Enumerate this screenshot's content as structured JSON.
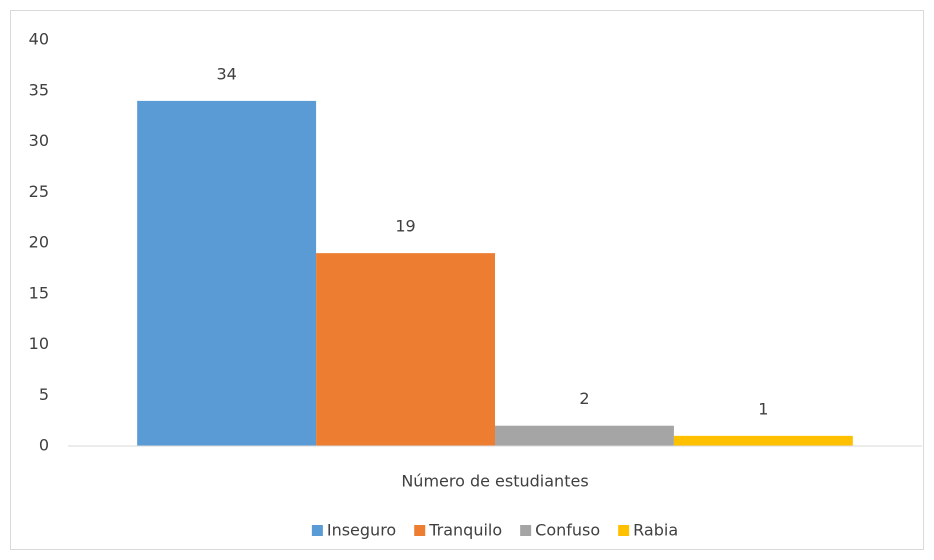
{
  "chart_data": {
    "type": "bar",
    "categories": [
      "Número de estudiantes"
    ],
    "series": [
      {
        "name": "Inseguro",
        "color": "#5b9bd5",
        "values": [
          34
        ]
      },
      {
        "name": "Tranquilo",
        "color": "#ed7d31",
        "values": [
          19
        ]
      },
      {
        "name": "Confuso",
        "color": "#a5a5a5",
        "values": [
          2
        ]
      },
      {
        "name": "Rabia",
        "color": "#ffc000",
        "values": [
          1
        ]
      }
    ],
    "ylim": [
      0,
      40
    ],
    "yticks": [
      0,
      5,
      10,
      15,
      20,
      25,
      30,
      35,
      40
    ],
    "grid": false,
    "legend": "bottom",
    "data_labels": true
  }
}
